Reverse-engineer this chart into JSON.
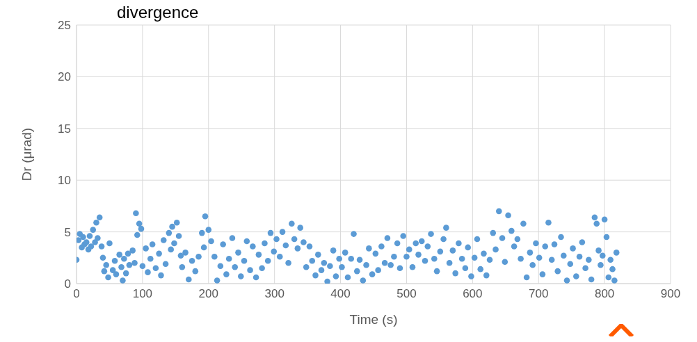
{
  "chart_data": {
    "type": "scatter",
    "title": "divergence",
    "xlabel": "Time (s)",
    "ylabel": "Dr (μrad)",
    "xlim": [
      0,
      900
    ],
    "ylim": [
      0,
      25
    ],
    "xticks": [
      0,
      100,
      200,
      300,
      400,
      500,
      600,
      700,
      800,
      900
    ],
    "yticks": [
      0,
      5,
      10,
      15,
      20,
      25
    ],
    "grid": true,
    "marker": "circle",
    "color": "#5b9bd5",
    "x": [
      0,
      3,
      5,
      8,
      10,
      12,
      15,
      18,
      20,
      22,
      25,
      28,
      30,
      32,
      35,
      38,
      40,
      42,
      45,
      48,
      50,
      55,
      58,
      60,
      65,
      68,
      70,
      72,
      75,
      78,
      80,
      85,
      88,
      90,
      92,
      95,
      98,
      100,
      105,
      108,
      112,
      115,
      120,
      125,
      128,
      132,
      135,
      140,
      143,
      145,
      148,
      152,
      155,
      158,
      160,
      165,
      170,
      175,
      180,
      185,
      190,
      193,
      195,
      200,
      204,
      209,
      213,
      218,
      222,
      227,
      231,
      236,
      240,
      245,
      249,
      254,
      258,
      263,
      267,
      272,
      276,
      281,
      285,
      290,
      294,
      299,
      303,
      308,
      312,
      317,
      321,
      326,
      330,
      335,
      339,
      344,
      348,
      353,
      357,
      362,
      366,
      371,
      375,
      380,
      384,
      389,
      393,
      398,
      402,
      407,
      411,
      416,
      420,
      425,
      429,
      434,
      439,
      443,
      448,
      453,
      457,
      462,
      467,
      471,
      476,
      481,
      486,
      490,
      495,
      500,
      504,
      509,
      514,
      518,
      523,
      528,
      532,
      537,
      542,
      546,
      551,
      556,
      560,
      565,
      570,
      574,
      579,
      584,
      589,
      593,
      598,
      603,
      607,
      612,
      617,
      621,
      626,
      631,
      635,
      640,
      645,
      649,
      654,
      659,
      663,
      668,
      673,
      677,
      682,
      687,
      691,
      696,
      701,
      706,
      710,
      715,
      720,
      724,
      729,
      734,
      738,
      743,
      748,
      752,
      757,
      762,
      766,
      771,
      776,
      780,
      785,
      788,
      791,
      794,
      797,
      800,
      803,
      806,
      809,
      812,
      815,
      818
    ],
    "values": [
      2.3,
      4.2,
      4.8,
      3.5,
      4.5,
      3.8,
      4.0,
      3.3,
      4.6,
      3.6,
      5.2,
      4.0,
      5.9,
      4.4,
      6.4,
      3.6,
      2.5,
      1.2,
      1.8,
      0.6,
      3.9,
      1.3,
      2.2,
      0.9,
      2.8,
      1.6,
      0.3,
      2.4,
      1.0,
      2.9,
      1.8,
      3.2,
      2.0,
      6.8,
      4.7,
      5.8,
      5.3,
      1.7,
      3.4,
      1.1,
      2.4,
      3.8,
      1.5,
      2.9,
      0.8,
      4.2,
      1.9,
      4.9,
      3.3,
      5.5,
      3.9,
      5.9,
      4.6,
      2.7,
      1.6,
      3.0,
      0.4,
      2.2,
      1.2,
      2.6,
      4.9,
      3.5,
      6.5,
      5.2,
      4.1,
      2.6,
      0.3,
      1.7,
      3.8,
      0.9,
      2.4,
      4.4,
      1.6,
      3.0,
      0.7,
      2.2,
      4.1,
      1.3,
      3.6,
      0.6,
      2.8,
      1.5,
      3.9,
      2.2,
      4.9,
      3.1,
      4.3,
      2.6,
      5.0,
      3.7,
      2.0,
      5.8,
      4.3,
      3.4,
      5.4,
      4.0,
      1.6,
      3.6,
      2.2,
      0.8,
      2.8,
      1.3,
      2.0,
      0.2,
      1.7,
      3.2,
      0.7,
      2.4,
      1.6,
      3.0,
      0.6,
      2.4,
      4.8,
      1.2,
      2.3,
      0.3,
      1.8,
      3.4,
      0.9,
      2.9,
      1.3,
      3.6,
      2.0,
      4.4,
      1.8,
      2.6,
      3.9,
      1.5,
      4.6,
      2.6,
      3.3,
      1.6,
      3.9,
      2.8,
      4.1,
      2.2,
      3.6,
      4.8,
      2.4,
      1.2,
      3.1,
      4.3,
      5.4,
      2.0,
      3.2,
      1.0,
      3.9,
      2.4,
      1.5,
      3.5,
      0.7,
      2.5,
      4.3,
      1.4,
      2.9,
      0.8,
      2.3,
      4.9,
      3.3,
      7.0,
      4.4,
      2.1,
      6.6,
      5.1,
      3.6,
      4.3,
      2.4,
      5.8,
      0.6,
      3.0,
      1.8,
      3.9,
      2.5,
      0.9,
      3.6,
      5.9,
      2.3,
      3.8,
      1.2,
      4.5,
      2.7,
      0.3,
      1.9,
      3.4,
      0.7,
      2.6,
      4.0,
      1.5,
      2.3,
      0.4,
      6.4,
      5.8,
      3.2,
      1.8,
      2.7,
      6.2,
      4.5,
      0.6,
      2.3,
      1.4,
      0.3,
      3.0
    ]
  }
}
